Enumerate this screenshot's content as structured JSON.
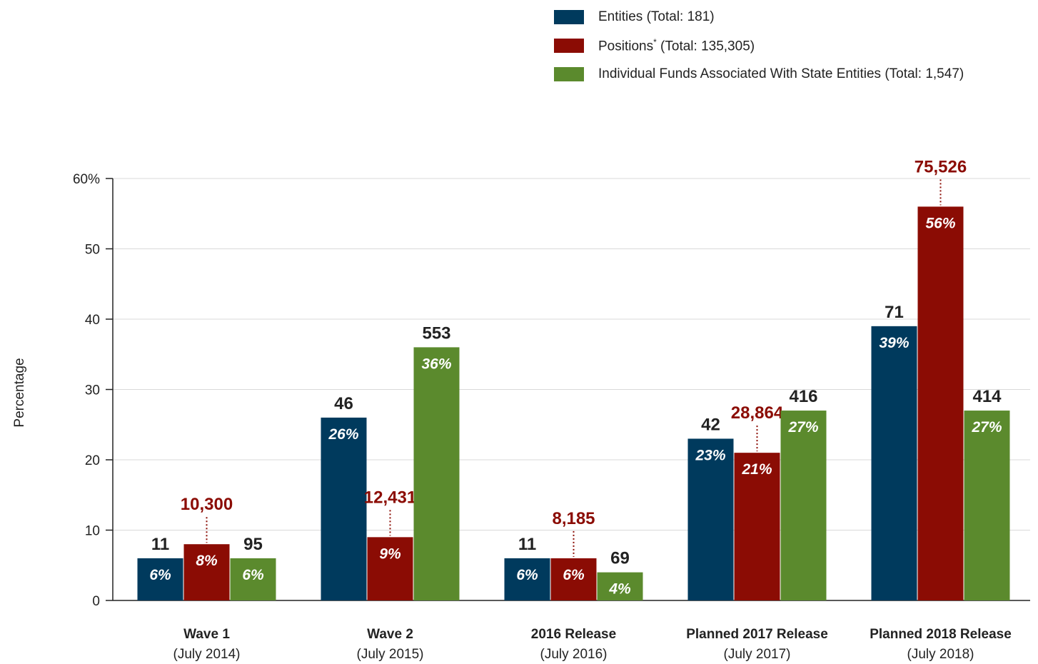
{
  "colors": {
    "entities": "#003a5d",
    "positions": "#8b0c04",
    "funds": "#5b8a2d",
    "axis": "#222222",
    "grid": "#d9d9d9"
  },
  "legend": [
    {
      "label": "Entities (Total: 181)",
      "color": "#003a5d"
    },
    {
      "label": "Positions* (Total: 135,305)",
      "color": "#8b0c04"
    },
    {
      "label": "Individual Funds Associated With State Entities (Total: 1,547)",
      "color": "#5b8a2d"
    }
  ],
  "chart_data": {
    "type": "bar",
    "ylabel": "Percentage",
    "ylim": [
      0,
      60
    ],
    "yticks": [
      "0",
      "10",
      "20",
      "30",
      "40",
      "50",
      "60%"
    ],
    "grid": true,
    "legend_position": "top-right",
    "categories": [
      {
        "name": "Wave 1",
        "sub": "(July 2014)"
      },
      {
        "name": "Wave 2",
        "sub": "(July 2015)"
      },
      {
        "name": "2016 Release",
        "sub": "(July 2016)"
      },
      {
        "name": "Planned 2017 Release",
        "sub": "(July 2017)"
      },
      {
        "name": "Planned 2018 Release",
        "sub": "(July 2018)"
      }
    ],
    "series": [
      {
        "name": "Entities (Total: 181)",
        "color": "#003a5d",
        "values": [
          6,
          26,
          6,
          23,
          39
        ],
        "percent_labels": [
          "6%",
          "26%",
          "6%",
          "23%",
          "39%"
        ],
        "count_labels": [
          "11",
          "46",
          "11",
          "42",
          "71"
        ]
      },
      {
        "name": "Positions* (Total: 135,305)",
        "color": "#8b0c04",
        "values": [
          8,
          9,
          6,
          21,
          56
        ],
        "percent_labels": [
          "8%",
          "9%",
          "6%",
          "21%",
          "56%"
        ],
        "count_labels": [
          "10,300",
          "12,431",
          "8,185",
          "28,864",
          "75,526"
        ]
      },
      {
        "name": "Individual Funds Associated With State Entities (Total: 1,547)",
        "color": "#5b8a2d",
        "values": [
          6,
          36,
          4,
          27,
          27
        ],
        "percent_labels": [
          "6%",
          "36%",
          "4%",
          "27%",
          "27%"
        ],
        "count_labels": [
          "95",
          "553",
          "69",
          "416",
          "414"
        ]
      }
    ]
  }
}
